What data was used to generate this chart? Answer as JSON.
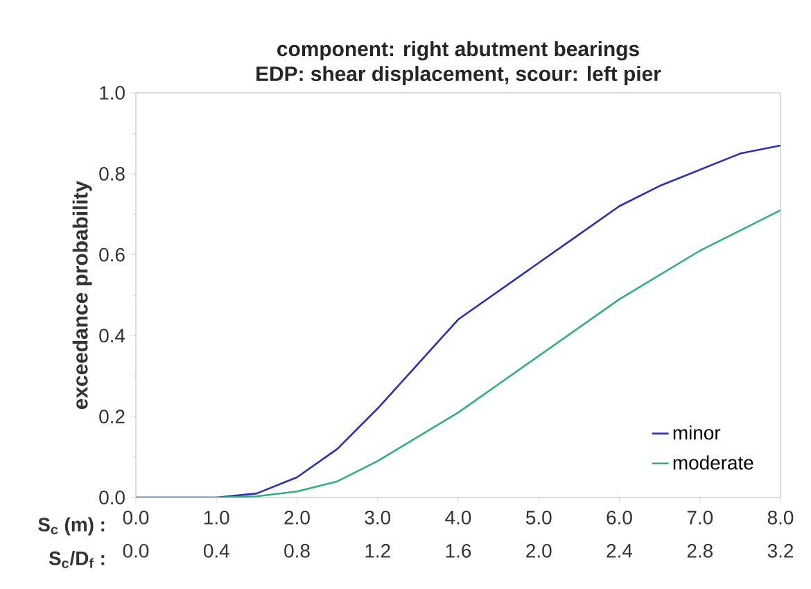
{
  "chart_data": {
    "type": "line",
    "title": "component: right abutment bearings\nEDP: shear displacement, scour: left pier",
    "xlabel": "S$_{c}$ (m) :",
    "x2label": "S$_{c}$/D$_{f}$ :",
    "ylabel": "exceedance  probability",
    "xlim": [
      0,
      8
    ],
    "ylim": [
      0,
      1
    ],
    "x2lim": [
      0,
      3.2
    ],
    "xticks": [
      {
        "value": 0,
        "label": "0.0"
      },
      {
        "value": 1,
        "label": "1.0"
      },
      {
        "value": 2,
        "label": "2.0"
      },
      {
        "value": 3,
        "label": "3.0"
      },
      {
        "value": 4,
        "label": "4.0"
      },
      {
        "value": 5,
        "label": "5.0"
      },
      {
        "value": 6,
        "label": "6.0"
      },
      {
        "value": 7,
        "label": "7.0"
      },
      {
        "value": 8,
        "label": "8.0"
      }
    ],
    "x2ticks": [
      {
        "value": 0,
        "label": "0.0"
      },
      0.4,
      0.8,
      1.2,
      1.6,
      {
        "value": 2,
        "label": "2.0"
      },
      2.4,
      2.8,
      3.2
    ],
    "yticks": [
      {
        "value": 0,
        "label": "0.0"
      },
      0.2,
      0.4,
      0.6,
      0.8,
      {
        "value": 1,
        "label": "1.0"
      }
    ],
    "legend": "bottom right",
    "marker": "none",
    "line_style": "solid",
    "series": [
      {
        "name": "minor",
        "color": "#2b2bc8",
        "x": [
          0,
          1.0,
          1.5,
          2.0,
          2.5,
          3.0,
          3.5,
          4.0,
          4.5,
          5.0,
          5.5,
          6.0,
          6.5,
          7.0,
          7.5,
          8.0
        ],
        "values": [
          0,
          0,
          0.01,
          0.05,
          0.12,
          0.22,
          0.33,
          0.44,
          0.51,
          0.58,
          0.65,
          0.72,
          0.77,
          0.81,
          0.85,
          0.87
        ]
      },
      {
        "name": "moderate",
        "color": "#2cb37a",
        "x": [
          0,
          1.0,
          1.5,
          2.0,
          2.5,
          3.0,
          3.5,
          4.0,
          4.5,
          5.0,
          5.5,
          6.0,
          6.5,
          7.0,
          7.5,
          8.0
        ],
        "values": [
          0,
          0,
          0.003,
          0.015,
          0.04,
          0.09,
          0.15,
          0.21,
          0.28,
          0.35,
          0.42,
          0.49,
          0.55,
          0.61,
          0.66,
          0.71
        ]
      }
    ]
  }
}
